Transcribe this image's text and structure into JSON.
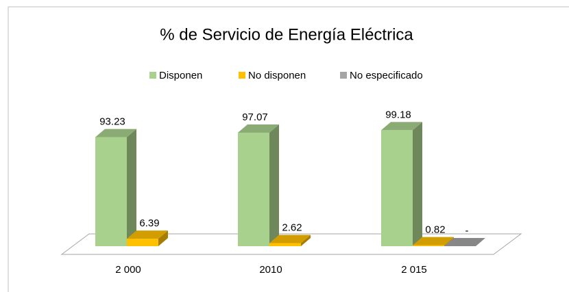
{
  "chart_data": {
    "type": "bar3d",
    "title": "% de Servicio de Energía Eléctrica",
    "categories": [
      "2 000",
      "2010",
      "2 015"
    ],
    "series": [
      {
        "name": "Disponen",
        "color": "#a9d18e",
        "values": [
          93.23,
          97.07,
          99.18
        ]
      },
      {
        "name": "No disponen",
        "color": "#ffc000",
        "values": [
          6.39,
          2.62,
          0.82
        ]
      },
      {
        "name": "No especificado",
        "color": "#a5a5a5",
        "values": [
          null,
          null,
          0
        ],
        "value_labels": [
          null,
          null,
          "-"
        ]
      }
    ],
    "legend": "top"
  }
}
